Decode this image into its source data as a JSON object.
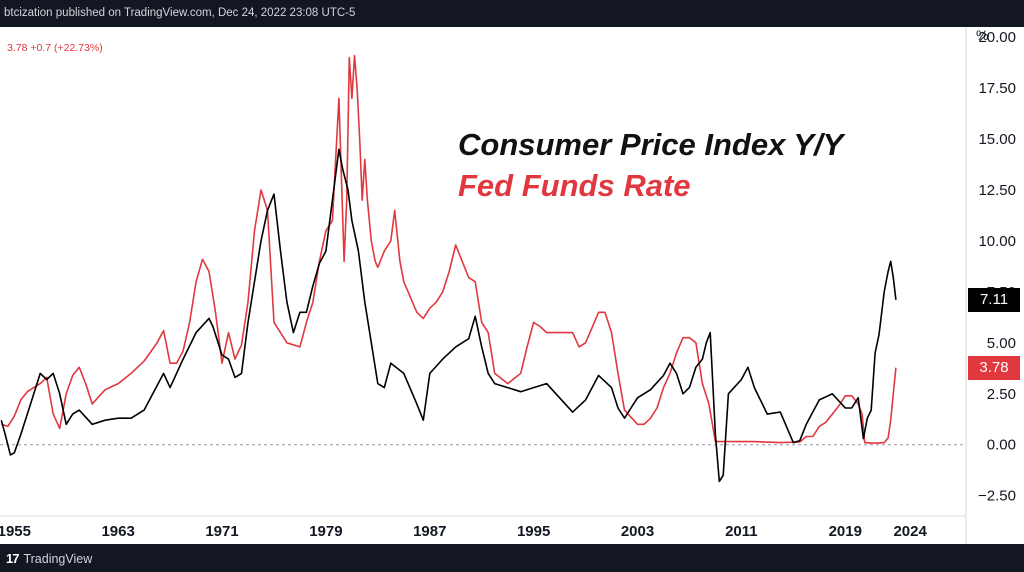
{
  "header": {
    "published_text": "btcization published on TradingView.com, Dec 24, 2022 23:08 UTC-5"
  },
  "legend": {
    "text": "3.78  +0.7 (+22.73%)"
  },
  "footer": {
    "brand_logo": "17",
    "brand_name": "TradingView"
  },
  "colors": {
    "cpi": "#000000",
    "fed": "#e0383e",
    "topbar": "#131722"
  },
  "chart_data": {
    "type": "line",
    "title": "Consumer Price Index Y/Y",
    "subtitle": "Fed Funds Rate",
    "unit_label": "%",
    "ylim": [
      -3.5,
      20.5
    ],
    "xlim": [
      1953.9,
      2028.3
    ],
    "y_ticks": [
      {
        "value": 20,
        "label": "20.00"
      },
      {
        "value": 17.5,
        "label": "17.50"
      },
      {
        "value": 15,
        "label": "15.00"
      },
      {
        "value": 12.5,
        "label": "12.50"
      },
      {
        "value": 10,
        "label": "10.00"
      },
      {
        "value": 7.5,
        "label": "7.50"
      },
      {
        "value": 5,
        "label": "5.00"
      },
      {
        "value": 2.5,
        "label": "2.50"
      },
      {
        "value": 0,
        "label": "0.00"
      },
      {
        "value": -2.5,
        "label": "−2.50"
      }
    ],
    "x_ticks": [
      {
        "value": 1955,
        "label": "1955"
      },
      {
        "value": 1963,
        "label": "1963"
      },
      {
        "value": 1971,
        "label": "1971"
      },
      {
        "value": 1979,
        "label": "1979"
      },
      {
        "value": 1987,
        "label": "1987"
      },
      {
        "value": 1995,
        "label": "1995"
      },
      {
        "value": 2003,
        "label": "2003"
      },
      {
        "value": 2011,
        "label": "2011"
      },
      {
        "value": 2019,
        "label": "2019"
      },
      {
        "value": 2024,
        "label": "2024"
      }
    ],
    "zero_line": 0,
    "badges": [
      {
        "series": "CPI",
        "value": 7.11,
        "label": "7.11"
      },
      {
        "series": "Fed Funds Rate",
        "value": 3.78,
        "label": "3.78"
      }
    ],
    "series": [
      {
        "name": "Fed Funds Rate",
        "color": "#e0383e",
        "x": [
          1954.0,
          1954.5,
          1955.0,
          1955.5,
          1956.0,
          1956.5,
          1957.0,
          1957.5,
          1958.0,
          1958.5,
          1959.0,
          1959.5,
          1960.0,
          1960.5,
          1961.0,
          1962.0,
          1963.0,
          1964.0,
          1965.0,
          1966.0,
          1966.5,
          1967.0,
          1967.5,
          1968.0,
          1968.5,
          1969.0,
          1969.5,
          1970.0,
          1970.5,
          1971.0,
          1971.5,
          1972.0,
          1972.5,
          1973.0,
          1973.5,
          1974.0,
          1974.5,
          1975.0,
          1975.5,
          1976.0,
          1977.0,
          1977.5,
          1978.0,
          1978.5,
          1979.0,
          1979.5,
          1980.0,
          1980.2,
          1980.4,
          1980.6,
          1980.8,
          1981.0,
          1981.2,
          1981.4,
          1981.6,
          1981.8,
          1982.0,
          1982.2,
          1982.5,
          1982.8,
          1983.0,
          1983.5,
          1984.0,
          1984.3,
          1984.7,
          1985.0,
          1986.0,
          1986.5,
          1987.0,
          1987.5,
          1988.0,
          1988.5,
          1989.0,
          1989.5,
          1990.0,
          1990.5,
          1991.0,
          1991.5,
          1992.0,
          1993.0,
          1994.0,
          1994.5,
          1995.0,
          1995.5,
          1996.0,
          1997.0,
          1998.0,
          1998.5,
          1999.0,
          2000.0,
          2000.5,
          2001.0,
          2001.5,
          2002.0,
          2003.0,
          2003.5,
          2004.0,
          2004.5,
          2005.0,
          2005.5,
          2006.0,
          2006.5,
          2007.0,
          2007.5,
          2008.0,
          2008.5,
          2009.0,
          2010.0,
          2012.0,
          2014.0,
          2015.5,
          2016.0,
          2016.5,
          2017.0,
          2017.5,
          2018.0,
          2018.5,
          2019.0,
          2019.5,
          2020.0,
          2020.3,
          2020.5,
          2021.0,
          2021.5,
          2022.0,
          2022.3,
          2022.5,
          2022.7,
          2022.9
        ],
        "y": [
          1.0,
          0.9,
          1.4,
          2.2,
          2.6,
          2.8,
          3.0,
          3.3,
          1.5,
          0.8,
          2.5,
          3.4,
          3.8,
          3.0,
          2.0,
          2.7,
          3.0,
          3.5,
          4.1,
          5.0,
          5.6,
          4.0,
          4.0,
          4.6,
          6.0,
          8.0,
          9.1,
          8.5,
          6.5,
          4.0,
          5.5,
          4.2,
          4.9,
          7.0,
          10.5,
          12.5,
          11.5,
          6.0,
          5.5,
          5.0,
          4.8,
          6.0,
          7.0,
          9.0,
          10.5,
          11.0,
          17.0,
          13.0,
          9.0,
          12.0,
          19.0,
          17.0,
          19.1,
          17.5,
          15.0,
          12.0,
          14.0,
          12.0,
          10.0,
          9.0,
          8.7,
          9.5,
          10.0,
          11.5,
          9.0,
          8.0,
          6.5,
          6.2,
          6.7,
          7.0,
          7.5,
          8.5,
          9.8,
          9.0,
          8.2,
          8.0,
          6.0,
          5.5,
          3.5,
          3.0,
          3.5,
          4.8,
          6.0,
          5.8,
          5.5,
          5.5,
          5.5,
          4.8,
          5.0,
          6.5,
          6.5,
          5.5,
          3.5,
          1.7,
          1.0,
          1.0,
          1.3,
          1.8,
          2.8,
          3.5,
          4.5,
          5.25,
          5.25,
          5.0,
          3.0,
          2.0,
          0.15,
          0.15,
          0.15,
          0.1,
          0.13,
          0.4,
          0.4,
          0.9,
          1.1,
          1.5,
          1.9,
          2.4,
          2.4,
          2.0,
          1.5,
          0.1,
          0.08,
          0.08,
          0.1,
          0.33,
          1.2,
          2.5,
          3.78
        ]
      },
      {
        "name": "CPI",
        "color": "#000000",
        "x": [
          1954.0,
          1954.3,
          1954.7,
          1955.0,
          1955.5,
          1956.0,
          1956.5,
          1957.0,
          1957.5,
          1958.0,
          1958.5,
          1959.0,
          1959.5,
          1960.0,
          1961.0,
          1962.0,
          1963.0,
          1964.0,
          1965.0,
          1966.0,
          1966.5,
          1967.0,
          1968.0,
          1969.0,
          1970.0,
          1970.3,
          1970.7,
          1971.0,
          1971.5,
          1972.0,
          1972.5,
          1973.0,
          1973.5,
          1974.0,
          1974.5,
          1975.0,
          1975.5,
          1976.0,
          1976.5,
          1977.0,
          1977.5,
          1978.0,
          1978.5,
          1979.0,
          1979.5,
          1980.0,
          1980.3,
          1980.7,
          1981.0,
          1981.5,
          1982.0,
          1982.5,
          1983.0,
          1983.5,
          1984.0,
          1985.0,
          1986.0,
          1986.5,
          1987.0,
          1988.0,
          1989.0,
          1990.0,
          1990.5,
          1991.0,
          1991.5,
          1992.0,
          1993.0,
          1994.0,
          1995.0,
          1996.0,
          1997.0,
          1998.0,
          1999.0,
          2000.0,
          2001.0,
          2001.5,
          2002.0,
          2003.0,
          2004.0,
          2005.0,
          2005.5,
          2006.0,
          2006.5,
          2007.0,
          2007.5,
          2008.0,
          2008.3,
          2008.6,
          2009.0,
          2009.3,
          2009.6,
          2010.0,
          2011.0,
          2011.5,
          2012.0,
          2013.0,
          2014.0,
          2015.0,
          2015.5,
          2016.0,
          2017.0,
          2018.0,
          2019.0,
          2019.5,
          2020.0,
          2020.4,
          2020.7,
          2021.0,
          2021.3,
          2021.6,
          2022.0,
          2022.3,
          2022.5,
          2022.7,
          2022.9
        ],
        "y": [
          1.2,
          0.5,
          -0.5,
          -0.4,
          0.5,
          1.5,
          2.5,
          3.5,
          3.2,
          3.5,
          2.5,
          1.0,
          1.5,
          1.7,
          1.0,
          1.2,
          1.3,
          1.3,
          1.7,
          2.9,
          3.5,
          2.8,
          4.2,
          5.5,
          6.2,
          5.8,
          5.0,
          4.4,
          4.2,
          3.3,
          3.5,
          6.0,
          8.0,
          10.0,
          11.5,
          12.3,
          9.5,
          7.0,
          5.5,
          6.5,
          6.5,
          7.8,
          8.9,
          9.5,
          12.0,
          14.5,
          13.5,
          12.5,
          11.0,
          9.5,
          7.0,
          5.0,
          3.0,
          2.8,
          4.0,
          3.5,
          2.0,
          1.2,
          3.5,
          4.2,
          4.8,
          5.2,
          6.3,
          4.8,
          3.5,
          3.0,
          2.8,
          2.6,
          2.8,
          3.0,
          2.3,
          1.6,
          2.2,
          3.4,
          2.8,
          1.8,
          1.3,
          2.3,
          2.7,
          3.4,
          4.0,
          3.5,
          2.5,
          2.8,
          3.8,
          4.2,
          5.0,
          5.5,
          0.5,
          -1.8,
          -1.5,
          2.5,
          3.2,
          3.8,
          2.8,
          1.5,
          1.6,
          0.1,
          0.2,
          1.0,
          2.2,
          2.5,
          1.8,
          1.8,
          2.3,
          0.3,
          1.3,
          1.7,
          4.5,
          5.4,
          7.5,
          8.5,
          9.0,
          8.2,
          7.11
        ]
      }
    ]
  }
}
